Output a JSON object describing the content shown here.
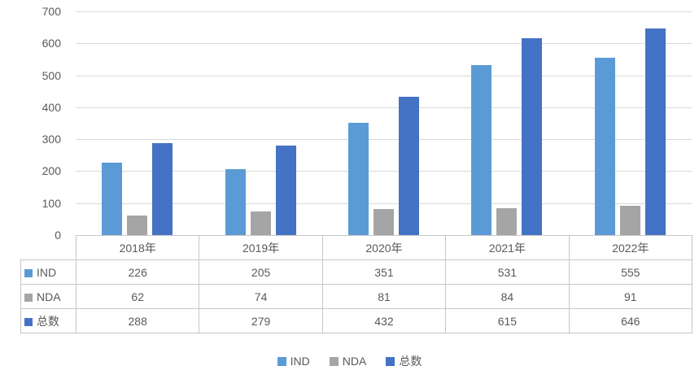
{
  "chart_data": {
    "type": "bar",
    "title": "",
    "categories": [
      "2018年",
      "2019年",
      "2020年",
      "2021年",
      "2022年"
    ],
    "series": [
      {
        "name": "IND",
        "color": "#5b9bd5",
        "values": [
          226,
          205,
          351,
          531,
          555
        ]
      },
      {
        "name": "NDA",
        "color": "#a5a5a5",
        "values": [
          62,
          74,
          81,
          84,
          91
        ]
      },
      {
        "name": "总数",
        "color": "#4472c4",
        "values": [
          288,
          279,
          432,
          615,
          646
        ]
      }
    ],
    "ylim": [
      0,
      700
    ],
    "ytick_step": 100,
    "yticks": [
      0,
      100,
      200,
      300,
      400,
      500,
      600,
      700
    ],
    "grid": true,
    "legend_position": "bottom",
    "data_table_shown": true
  },
  "colors": {
    "gridline": "#d9d9d9",
    "table_border": "#c6c6c6",
    "text": "#595959",
    "background": "#ffffff"
  }
}
